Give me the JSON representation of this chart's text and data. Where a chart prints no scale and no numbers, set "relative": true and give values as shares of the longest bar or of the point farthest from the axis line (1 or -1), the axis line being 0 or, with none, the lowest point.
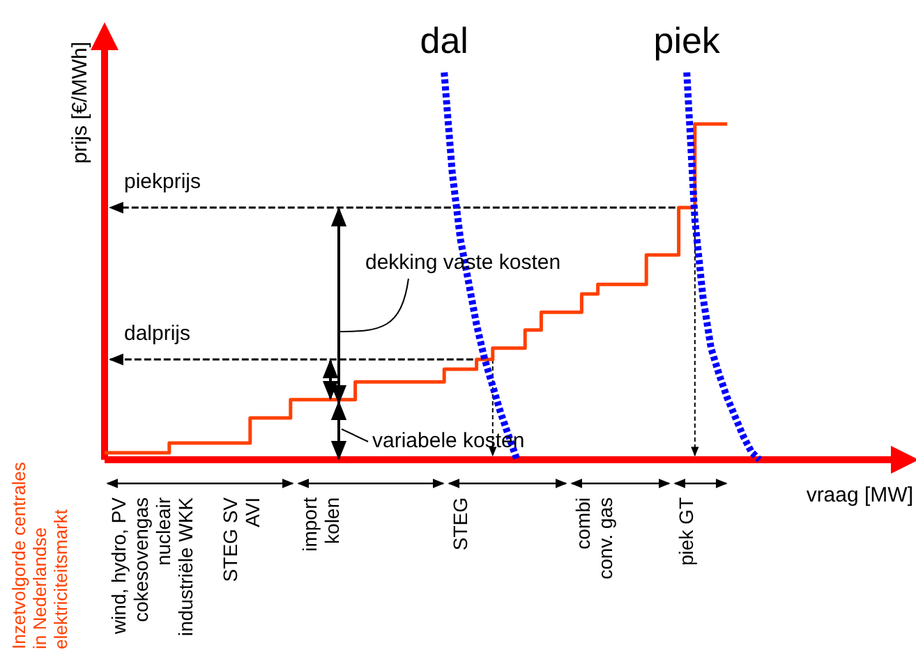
{
  "chart_data": {
    "type": "line",
    "xlabel": "vraag [MW]",
    "ylabel": "prijs [€/MWh]",
    "relative": true,
    "categories": [
      null,
      null,
      null,
      null,
      null,
      null,
      null,
      null,
      null,
      null,
      null,
      null,
      null,
      null,
      null,
      null,
      null,
      null,
      null,
      null,
      null,
      null,
      null,
      null,
      null,
      null,
      null,
      null,
      null,
      null,
      null,
      null,
      null,
      null,
      null,
      null,
      null,
      null,
      null,
      null,
      null,
      null,
      null,
      null,
      null,
      null,
      null,
      null,
      null,
      null,
      null,
      null,
      null,
      null,
      null,
      null,
      null,
      null,
      null,
      null,
      null,
      null,
      null,
      null,
      null,
      null,
      null,
      null,
      null,
      null,
      null,
      null,
      null,
      null,
      null,
      null,
      null,
      null,
      null,
      null,
      null,
      null,
      null,
      null,
      null,
      null
    ],
    "series": [
      {
        "type": "step",
        "color": "#ff4000",
        "values": [
          0.018,
          0.018,
          0.018,
          0.018,
          0.018,
          0.018,
          0.018,
          0.018,
          0.043,
          0.043,
          0.043,
          0.043,
          0.043,
          0.043,
          0.043,
          0.043,
          0.043,
          0.043,
          0.108,
          0.108,
          0.108,
          0.108,
          0.108,
          0.155,
          0.155,
          0.155,
          0.155,
          0.155,
          0.155,
          0.155,
          0.155,
          0.201,
          0.201,
          0.201,
          0.201,
          0.201,
          0.201,
          0.201,
          0.201,
          0.201,
          0.201,
          0.201,
          0.234,
          0.234,
          0.234,
          0.234,
          0.259,
          0.259,
          0.288,
          0.288,
          0.288,
          0.288,
          0.335,
          0.335,
          0.381,
          0.381,
          0.381,
          0.381,
          0.381,
          0.428,
          0.428,
          0.453,
          0.453,
          0.453,
          0.453,
          0.453,
          0.453,
          0.529,
          0.529,
          0.529,
          0.529,
          0.651,
          0.651,
          0.867,
          0.867,
          0.867,
          0.867,
          0.867,
          null,
          null,
          null,
          null,
          null,
          null,
          null,
          null
        ]
      },
      {
        "name": "dal",
        "color": "#0000ff",
        "line_style": "dotted",
        "values": [
          null,
          null,
          null,
          null,
          null,
          null,
          null,
          null,
          null,
          null,
          null,
          null,
          null,
          null,
          null,
          null,
          null,
          null,
          null,
          null,
          null,
          null,
          null,
          null,
          null,
          null,
          null,
          null,
          null,
          null,
          null,
          null,
          null,
          null,
          null,
          null,
          null,
          null,
          null,
          null,
          null,
          null,
          1,
          0.74,
          0.57,
          0.46,
          0.349,
          0.26,
          0.19,
          0.12,
          0.06,
          0,
          null,
          null,
          null,
          null,
          null,
          null,
          null,
          null,
          null,
          null,
          null,
          null,
          null,
          null,
          null,
          null,
          null,
          null,
          null,
          null,
          null,
          null,
          null,
          null,
          null,
          null,
          null,
          null,
          null,
          null,
          null,
          null,
          null,
          null
        ]
      },
      {
        "name": "piek",
        "color": "#0000ff",
        "line_style": "dotted",
        "values": [
          null,
          null,
          null,
          null,
          null,
          null,
          null,
          null,
          null,
          null,
          null,
          null,
          null,
          null,
          null,
          null,
          null,
          null,
          null,
          null,
          null,
          null,
          null,
          null,
          null,
          null,
          null,
          null,
          null,
          null,
          null,
          null,
          null,
          null,
          null,
          null,
          null,
          null,
          null,
          null,
          null,
          null,
          null,
          null,
          null,
          null,
          null,
          null,
          null,
          null,
          null,
          null,
          null,
          null,
          null,
          null,
          null,
          null,
          null,
          null,
          null,
          null,
          null,
          null,
          null,
          null,
          null,
          null,
          null,
          null,
          null,
          null,
          1,
          0.62,
          0.42,
          0.288,
          0.22,
          0.16,
          0.11,
          0.06,
          0.02,
          0,
          null,
          null,
          null,
          null
        ]
      }
    ],
    "ref_lines": [
      {
        "axis": "y",
        "value": 0.651,
        "label": "piekprijs",
        "color": "#000000",
        "line_style": "dashed"
      },
      {
        "axis": "y",
        "value": 0.259,
        "label": "dalprijs",
        "color": "#000000",
        "line_style": "dashed"
      }
    ],
    "annotations": [
      "dekking vaste kosten",
      "variabele kosten",
      "Inzetvolgorde centrales\nin Nederlandse\nelektriciteitsmarkt",
      "wind, hydro, PV\ncokesovengas\nnucleair\nindustriële WKK\n\nSTEG SV\nAVI",
      "import\nkolen",
      "STEG",
      "combi\nconv. gas",
      "piek GT"
    ]
  }
}
